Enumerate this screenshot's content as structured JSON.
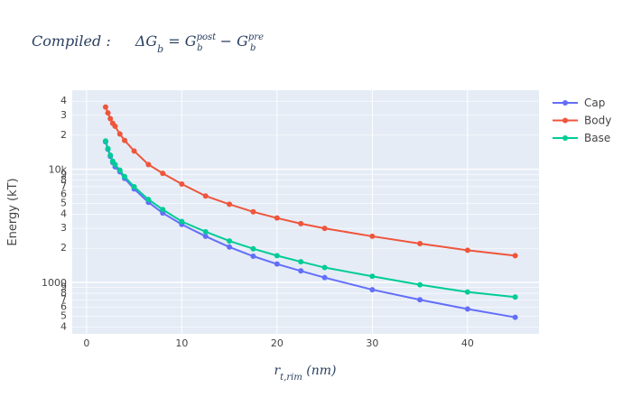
{
  "chart_data": {
    "type": "line",
    "title": {
      "prefix": "Compiled :",
      "delta": "ΔG",
      "sub_b": "b",
      "eq": " = G",
      "sup_post": "post",
      "minus": " − G",
      "sup_pre": "pre"
    },
    "xlabel": {
      "main": "r",
      "sub": "t,rim",
      "unit": " (nm)"
    },
    "ylabel": "Energy (kT)",
    "x_range": [
      -1.5,
      47.5
    ],
    "y_range": [
      350,
      50000
    ],
    "y_scale": "log",
    "grid": true,
    "legend_position": "top-right",
    "x_ticks": [
      0,
      10,
      20,
      30,
      40
    ],
    "y_major_ticks": [
      {
        "value": 1000,
        "label": "1000"
      },
      {
        "value": 10000,
        "label": "10k"
      }
    ],
    "y_minor_ticks": [
      {
        "value": 400,
        "label": "4"
      },
      {
        "value": 500,
        "label": "5"
      },
      {
        "value": 600,
        "label": "6"
      },
      {
        "value": 700,
        "label": "7"
      },
      {
        "value": 800,
        "label": "8"
      },
      {
        "value": 900,
        "label": "9"
      },
      {
        "value": 2000,
        "label": "2"
      },
      {
        "value": 3000,
        "label": "3"
      },
      {
        "value": 4000,
        "label": "4"
      },
      {
        "value": 5000,
        "label": "5"
      },
      {
        "value": 6000,
        "label": "6"
      },
      {
        "value": 7000,
        "label": "7"
      },
      {
        "value": 8000,
        "label": "8"
      },
      {
        "value": 9000,
        "label": "9"
      },
      {
        "value": 20000,
        "label": "2"
      },
      {
        "value": 30000,
        "label": "3"
      },
      {
        "value": 40000,
        "label": "4"
      }
    ],
    "series": [
      {
        "name": "Cap",
        "color": "#636efa",
        "x": [
          2,
          2.25,
          2.5,
          2.75,
          3,
          3.5,
          4,
          5,
          6.5,
          8,
          10,
          12.5,
          15,
          17.5,
          20,
          22.5,
          25,
          30,
          35,
          40,
          45
        ],
        "y": [
          17500,
          15000,
          13000,
          11500,
          10500,
          9500,
          8300,
          6700,
          5100,
          4100,
          3250,
          2550,
          2050,
          1700,
          1450,
          1260,
          1100,
          860,
          700,
          580,
          490
        ]
      },
      {
        "name": "Body",
        "color": "#ef553b",
        "x": [
          2,
          2.25,
          2.5,
          2.75,
          3,
          3.5,
          4,
          5,
          6.5,
          8,
          10,
          12.5,
          15,
          17.5,
          20,
          22.5,
          25,
          30,
          35,
          40,
          45
        ],
        "y": [
          35500,
          31500,
          28000,
          25500,
          24000,
          20500,
          18000,
          14500,
          11000,
          9200,
          7400,
          5800,
          4900,
          4200,
          3700,
          3300,
          3000,
          2550,
          2200,
          1920,
          1720
        ]
      },
      {
        "name": "Base",
        "color": "#00cc96",
        "x": [
          2,
          2.25,
          2.5,
          2.75,
          3,
          3.5,
          4,
          5,
          6.5,
          8,
          10,
          12.5,
          15,
          17.5,
          20,
          22.5,
          25,
          30,
          35,
          40,
          45
        ],
        "y": [
          17800,
          15200,
          13300,
          11800,
          11000,
          9800,
          8600,
          7000,
          5400,
          4400,
          3450,
          2800,
          2320,
          1980,
          1720,
          1520,
          1350,
          1130,
          950,
          820,
          740
        ]
      }
    ]
  }
}
